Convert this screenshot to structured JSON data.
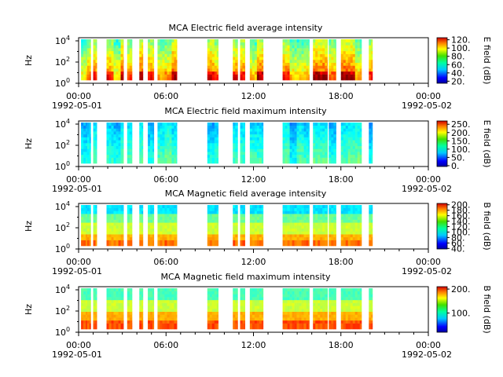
{
  "chart_data": [
    {
      "type": "heatmap",
      "title": "MCA  Electric field average intensity",
      "ylabel": "Hz",
      "y_scale": "log",
      "y_ticks": [
        "10^4",
        "10^2",
        "10^0"
      ],
      "x_ticks": [
        "00:00",
        "06:00",
        "12:00",
        "18:00",
        "00:00"
      ],
      "x_dates": [
        "1992-05-01",
        "1992-05-02"
      ],
      "colorbar": {
        "label": "E field (dB)",
        "ticks": [
          "120.",
          "100.",
          "80.",
          "60.",
          "40.",
          "20."
        ],
        "range": [
          15,
          125
        ]
      },
      "data_intervals_utc": [
        "00:10-00:35",
        "00:35-00:50",
        "01:00-01:15",
        "01:55-03:05",
        "03:20-03:40",
        "04:10-04:25",
        "04:45-05:10",
        "05:25-06:45",
        "08:50-09:35",
        "10:35-10:55",
        "11:05-11:25",
        "11:45-12:40",
        "14:00-15:50",
        "16:05-17:05",
        "17:10-17:40",
        "18:00-19:25",
        "19:55-20:10"
      ]
    },
    {
      "type": "heatmap",
      "title": "MCA  Electric field maximum intensity",
      "ylabel": "Hz",
      "y_scale": "log",
      "y_ticks": [
        "10^4",
        "10^2",
        "10^0"
      ],
      "x_ticks": [
        "00:00",
        "06:00",
        "12:00",
        "18:00",
        "00:00"
      ],
      "x_dates": [
        "1992-05-01",
        "1992-05-02"
      ],
      "colorbar": {
        "label": "E field (dB)",
        "ticks": [
          "250.",
          "200.",
          "150.",
          "100.",
          "50.",
          "0."
        ],
        "range": [
          -5,
          270
        ]
      },
      "data_intervals_utc": [
        "00:10-00:35",
        "00:35-00:50",
        "01:00-01:15",
        "01:55-03:05",
        "03:20-03:40",
        "04:10-04:25",
        "04:45-05:10",
        "05:25-06:45",
        "08:50-09:35",
        "10:35-10:55",
        "11:05-11:25",
        "11:45-12:40",
        "14:00-15:50",
        "16:05-17:05",
        "17:10-17:40",
        "18:00-19:25",
        "19:55-20:10"
      ]
    },
    {
      "type": "heatmap",
      "title": "MCA  Magnetic field average intensity",
      "ylabel": "Hz",
      "y_scale": "log",
      "y_ticks": [
        "10^4",
        "10^2",
        "10^0"
      ],
      "x_ticks": [
        "00:00",
        "06:00",
        "12:00",
        "18:00",
        "00:00"
      ],
      "x_dates": [
        "1992-05-01",
        "1992-05-02"
      ],
      "colorbar": {
        "label": "B field (dB)",
        "ticks": [
          "200.",
          "180.",
          "160.",
          "140.",
          "120.",
          "100.",
          "80.",
          "60.",
          "40."
        ],
        "range": [
          38,
          205
        ]
      },
      "data_intervals_utc": [
        "00:10-00:35",
        "00:35-00:50",
        "01:00-01:15",
        "01:55-03:05",
        "03:20-03:40",
        "04:10-04:25",
        "04:45-05:10",
        "05:25-06:45",
        "08:50-09:35",
        "10:35-10:55",
        "11:05-11:25",
        "11:45-12:40",
        "14:00-15:50",
        "16:05-17:05",
        "17:10-17:40",
        "18:00-19:25",
        "19:55-20:10"
      ]
    },
    {
      "type": "heatmap",
      "title": "MCA  Magnetic field maximum intensity",
      "ylabel": "Hz",
      "y_scale": "log",
      "y_ticks": [
        "10^4",
        "10^2",
        "10^0"
      ],
      "x_ticks": [
        "00:00",
        "06:00",
        "12:00",
        "18:00",
        "00:00"
      ],
      "x_dates": [
        "1992-05-01",
        "1992-05-02"
      ],
      "colorbar": {
        "label": "B field (dB)",
        "ticks": [
          "200.",
          "100."
        ],
        "range": [
          20,
          210
        ]
      },
      "data_intervals_utc": [
        "00:10-00:35",
        "00:35-00:50",
        "01:00-01:15",
        "01:55-03:05",
        "03:20-03:40",
        "04:10-04:25",
        "04:45-05:10",
        "05:25-06:45",
        "08:50-09:35",
        "10:35-10:55",
        "11:05-11:25",
        "11:45-12:40",
        "14:00-15:50",
        "16:05-17:05",
        "17:10-17:40",
        "18:00-19:25",
        "19:55-20:10"
      ]
    }
  ]
}
